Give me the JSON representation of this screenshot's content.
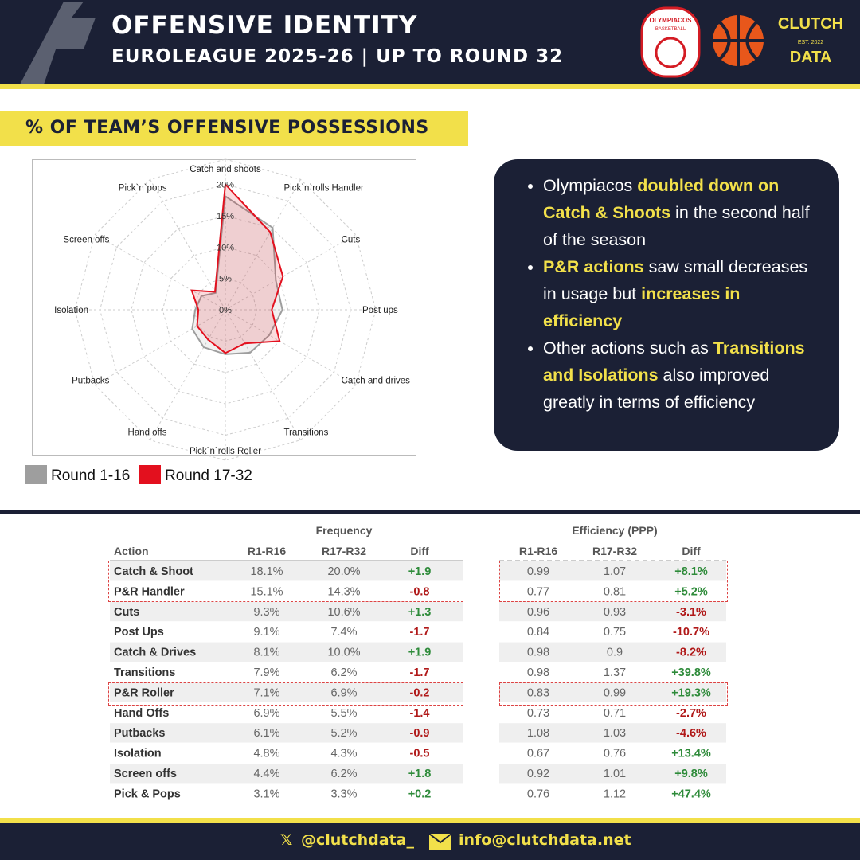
{
  "header": {
    "title": "OFFENSIVE IDENTITY",
    "subtitle": "EUROLEAGUE 2025-26 | UP TO ROUND 32",
    "team_logo": "OLYMPIACOS",
    "team_logo_sub": "BASKETBALL",
    "brand_top": "CLUTCH",
    "brand_est": "EST. 2022",
    "brand_bottom": "DATA"
  },
  "section_title": "% OF TEAM’S OFFENSIVE POSSESSIONS",
  "chart_data": {
    "type": "radar",
    "categories": [
      "Catch and shoots",
      "Pick`n`rolls Handler",
      "Cuts",
      "Post ups",
      "Catch and drives",
      "Transitions",
      "Pick`n`rolls Roller",
      "Hand offs",
      "Putbacks",
      "Isolation",
      "Screen offs",
      "Pick`n`pops"
    ],
    "series": [
      {
        "name": "Round 1-16",
        "color": "#9e9e9e",
        "values": [
          18.1,
          15.1,
          9.3,
          9.1,
          8.1,
          7.9,
          7.1,
          6.9,
          6.1,
          4.8,
          4.4,
          3.1
        ]
      },
      {
        "name": "Round 17-32",
        "color": "#e3101e",
        "values": [
          20.0,
          14.3,
          10.6,
          7.4,
          10.0,
          6.2,
          6.9,
          5.5,
          5.2,
          4.3,
          6.2,
          3.3
        ]
      }
    ],
    "rlim": [
      0,
      24
    ],
    "rticks": [
      {
        "value": 0,
        "label": "0%"
      },
      {
        "value": 5,
        "label": "5%"
      },
      {
        "value": 10,
        "label": "10%"
      },
      {
        "value": 15,
        "label": "15%"
      },
      {
        "value": 20,
        "label": "20%"
      }
    ],
    "grid": true
  },
  "bullets": [
    [
      "Olympiacos ",
      "doubled down on Catch & Shoots",
      " in the second half of the season"
    ],
    [
      "",
      "P&R actions",
      " saw small decreases in usage but ",
      "increases in efficiency",
      ""
    ],
    [
      "Other actions such as ",
      "Transitions and Isolations",
      " also improved greatly in terms of efficiency"
    ]
  ],
  "table": {
    "groups": [
      "Frequency",
      "Efficiency (PPP)"
    ],
    "columns": [
      "Action",
      "R1-R16",
      "R17-R32",
      "Diff",
      "R1-R16",
      "R17-R32",
      "Diff"
    ],
    "rows": [
      [
        "Catch & Shoot",
        "18.1%",
        "20.0%",
        "+1.9",
        "0.99",
        "1.07",
        "+8.1%"
      ],
      [
        "P&R Handler",
        "15.1%",
        "14.3%",
        "-0.8",
        "0.77",
        "0.81",
        "+5.2%"
      ],
      [
        "Cuts",
        "9.3%",
        "10.6%",
        "+1.3",
        "0.96",
        "0.93",
        "-3.1%"
      ],
      [
        "Post Ups",
        "9.1%",
        "7.4%",
        "-1.7",
        "0.84",
        "0.75",
        "-10.7%"
      ],
      [
        "Catch & Drives",
        "8.1%",
        "10.0%",
        "+1.9",
        "0.98",
        "0.9",
        "-8.2%"
      ],
      [
        "Transitions",
        "7.9%",
        "6.2%",
        "-1.7",
        "0.98",
        "1.37",
        "+39.8%"
      ],
      [
        "P&R Roller",
        "7.1%",
        "6.9%",
        "-0.2",
        "0.83",
        "0.99",
        "+19.3%"
      ],
      [
        "Hand Offs",
        "6.9%",
        "5.5%",
        "-1.4",
        "0.73",
        "0.71",
        "-2.7%"
      ],
      [
        "Putbacks",
        "6.1%",
        "5.2%",
        "-0.9",
        "1.08",
        "1.03",
        "-4.6%"
      ],
      [
        "Isolation",
        "4.8%",
        "4.3%",
        "-0.5",
        "0.67",
        "0.76",
        "+13.4%"
      ],
      [
        "Screen offs",
        "4.4%",
        "6.2%",
        "+1.8",
        "0.92",
        "1.01",
        "+9.8%"
      ],
      [
        "Pick & Pops",
        "3.1%",
        "3.3%",
        "+0.2",
        "0.76",
        "1.12",
        "+47.4%"
      ]
    ]
  },
  "footer": {
    "social": "@clutchdata_",
    "email": "info@clutchdata.net"
  }
}
